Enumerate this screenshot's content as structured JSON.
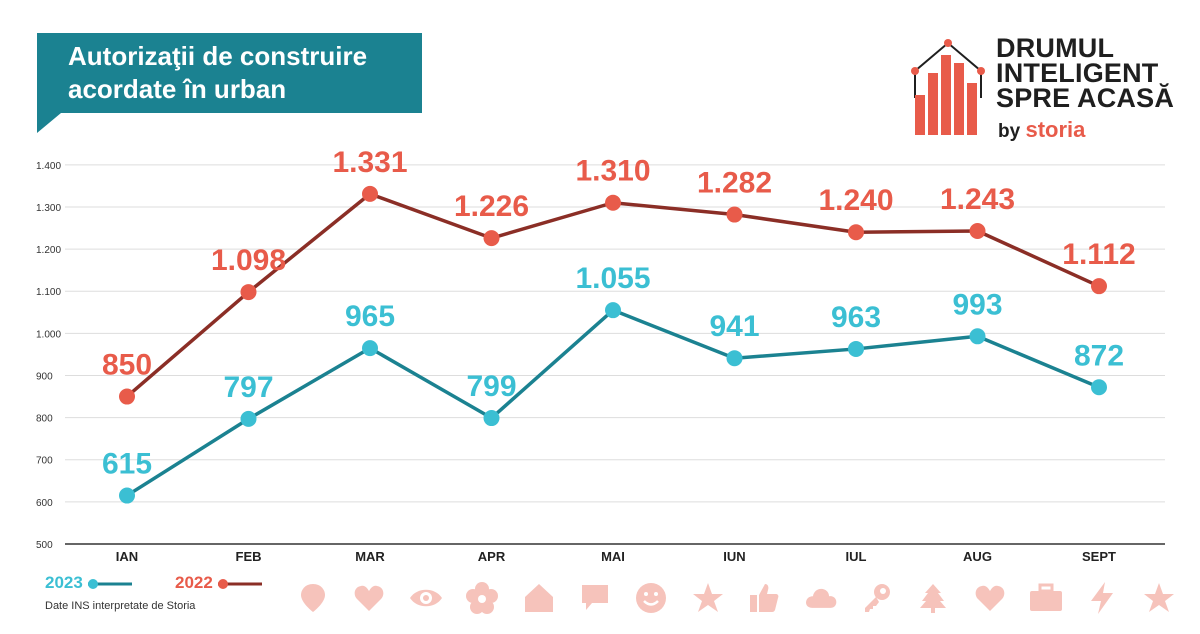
{
  "title": "Autorizaţii de construire acordate în urban",
  "brand": {
    "lines": [
      "DRUMUL",
      "INTELIGENT",
      "SPRE ACASĂ"
    ],
    "by": "by",
    "name": "storia"
  },
  "source": "Date INS interpretate de Storia",
  "colors": {
    "teal_header": "#1b8291",
    "series_2023_line": "#1b8291",
    "series_2023_marker": "#3bbfd3",
    "series_2022_line": "#8b2e26",
    "series_2022_marker": "#e85b4a",
    "icon_tint": "#f6c3bb"
  },
  "chart_data": {
    "type": "line",
    "categories": [
      "IAN",
      "FEB",
      "MAR",
      "APR",
      "MAI",
      "IUN",
      "IUL",
      "AUG",
      "SEPT"
    ],
    "series": [
      {
        "name": "2023",
        "values": [
          615,
          797,
          965,
          799,
          1055,
          941,
          963,
          993,
          872
        ],
        "labels": [
          "615",
          "797",
          "965",
          "799",
          "1.055",
          "941",
          "963",
          "993",
          "872"
        ]
      },
      {
        "name": "2022",
        "values": [
          850,
          1098,
          1331,
          1226,
          1310,
          1282,
          1240,
          1243,
          1112
        ],
        "labels": [
          "850",
          "1.098",
          "1.331",
          "1.226",
          "1.310",
          "1.282",
          "1.240",
          "1.243",
          "1.112"
        ]
      }
    ],
    "yticks": [
      500,
      600,
      700,
      800,
      900,
      1000,
      1100,
      1200,
      1300,
      1400
    ],
    "ytick_labels": [
      "500",
      "600",
      "700",
      "800",
      "900",
      "1.000",
      "1.100",
      "1.200",
      "1.300",
      "1.400"
    ],
    "ylim": [
      500,
      1400
    ],
    "grid": true,
    "legend": "bottom-left"
  },
  "icons": [
    "pin-icon",
    "heart-icon",
    "eye-icon",
    "flower-icon",
    "house-icon",
    "chat-icon",
    "smiley-icon",
    "star-icon",
    "thumbs-up-icon",
    "cloud-icon",
    "key-icon",
    "tree-icon",
    "heart-icon",
    "briefcase-icon",
    "lightning-icon",
    "star-icon"
  ]
}
